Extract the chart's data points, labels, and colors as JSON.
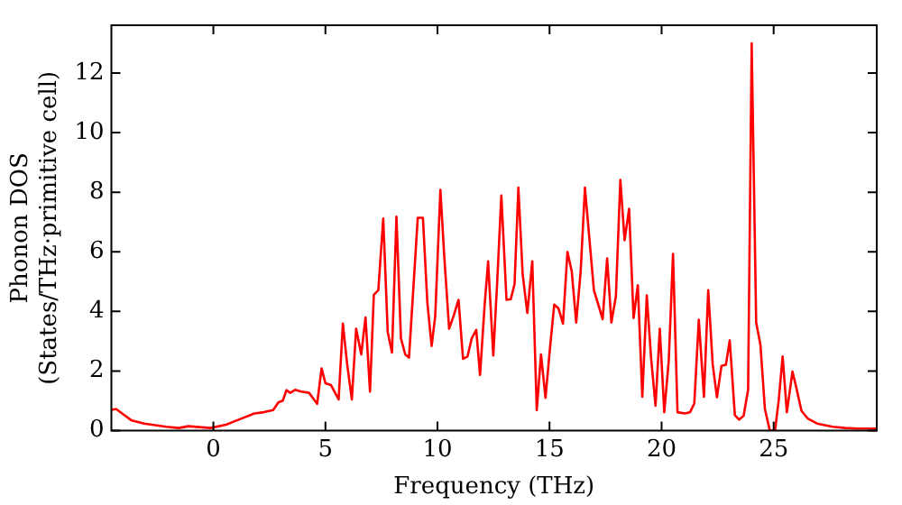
{
  "chart_data": {
    "type": "line",
    "xlabel": "Frequency (THz)",
    "ylabel": "Phonon DOS\n(States/THz·primitive cell)",
    "xlim": [
      -4.55,
      29.6
    ],
    "ylim": [
      0,
      13.6
    ],
    "xticks": [
      0,
      5,
      10,
      15,
      20,
      25
    ],
    "yticks": [
      0,
      2,
      4,
      6,
      8,
      10,
      12
    ],
    "grid": false,
    "legend": false,
    "marker": "none",
    "line_style": "solid",
    "series": [
      {
        "color": "#ff0000",
        "x": [
          -4.55,
          -4.34,
          -4.07,
          -3.64,
          -3.08,
          -2.1,
          -1.54,
          -1.12,
          -0.13,
          0.56,
          1.13,
          1.83,
          2.25,
          2.67,
          2.9,
          3.1,
          3.26,
          3.43,
          3.65,
          3.93,
          4.27,
          4.63,
          4.83,
          5.0,
          5.25,
          5.59,
          5.78,
          5.97,
          6.18,
          6.37,
          6.6,
          6.79,
          6.99,
          7.16,
          7.36,
          7.58,
          7.78,
          7.97,
          8.17,
          8.37,
          8.56,
          8.73,
          9.12,
          9.35,
          9.55,
          9.74,
          9.9,
          10.13,
          10.3,
          10.52,
          10.72,
          10.94,
          11.14,
          11.34,
          11.53,
          11.73,
          11.9,
          12.1,
          12.26,
          12.49,
          12.66,
          12.85,
          13.08,
          13.27,
          13.44,
          13.61,
          13.8,
          14.01,
          14.23,
          14.43,
          14.62,
          14.82,
          15.02,
          15.21,
          15.4,
          15.6,
          15.8,
          15.99,
          16.19,
          16.39,
          16.58,
          16.78,
          16.98,
          17.2,
          17.37,
          17.57,
          17.76,
          17.96,
          18.16,
          18.35,
          18.55,
          18.75,
          18.94,
          19.14,
          19.34,
          19.53,
          19.73,
          19.92,
          20.12,
          20.32,
          20.51,
          20.71,
          21.04,
          21.27,
          21.46,
          21.66,
          21.89,
          22.08,
          22.28,
          22.47,
          22.67,
          22.87,
          23.04,
          23.27,
          23.46,
          23.66,
          23.86,
          24.02,
          24.22,
          24.41,
          24.61,
          24.83,
          25.06,
          25.23,
          25.4,
          25.59,
          25.84,
          26.0,
          26.24,
          26.52,
          26.94,
          27.64,
          28.2,
          28.76,
          29.6
        ],
        "values": [
          0.7,
          0.73,
          0.58,
          0.34,
          0.24,
          0.13,
          0.09,
          0.15,
          0.09,
          0.2,
          0.37,
          0.58,
          0.62,
          0.69,
          0.95,
          1.01,
          1.36,
          1.27,
          1.37,
          1.31,
          1.27,
          0.9,
          2.09,
          1.59,
          1.53,
          1.05,
          3.59,
          2.23,
          1.05,
          3.42,
          2.56,
          3.8,
          1.31,
          4.56,
          4.71,
          7.12,
          3.31,
          2.62,
          7.18,
          3.1,
          2.56,
          2.45,
          7.14,
          7.14,
          4.28,
          2.84,
          3.85,
          8.08,
          5.89,
          3.42,
          3.85,
          4.39,
          2.41,
          2.49,
          3.1,
          3.38,
          1.87,
          4.17,
          5.68,
          2.52,
          4.92,
          7.89,
          4.39,
          4.41,
          4.92,
          8.15,
          5.25,
          3.95,
          5.68,
          0.69,
          2.56,
          1.1,
          2.77,
          4.23,
          4.1,
          3.59,
          6.0,
          5.35,
          3.63,
          5.35,
          8.15,
          6.43,
          4.71,
          4.17,
          3.74,
          5.78,
          3.63,
          4.5,
          8.41,
          6.39,
          7.44,
          3.78,
          4.88,
          1.14,
          4.54,
          2.45,
          0.84,
          3.42,
          0.62,
          2.35,
          5.93,
          0.62,
          0.58,
          0.62,
          0.92,
          3.72,
          1.14,
          4.71,
          2.23,
          1.12,
          2.17,
          2.21,
          3.03,
          0.52,
          0.37,
          0.5,
          1.37,
          12.99,
          3.63,
          2.88,
          0.73,
          0,
          0,
          1.05,
          2.49,
          0.62,
          1.98,
          1.48,
          0.67,
          0.41,
          0.24,
          0.13,
          0.09,
          0.07,
          0.07
        ]
      }
    ]
  }
}
